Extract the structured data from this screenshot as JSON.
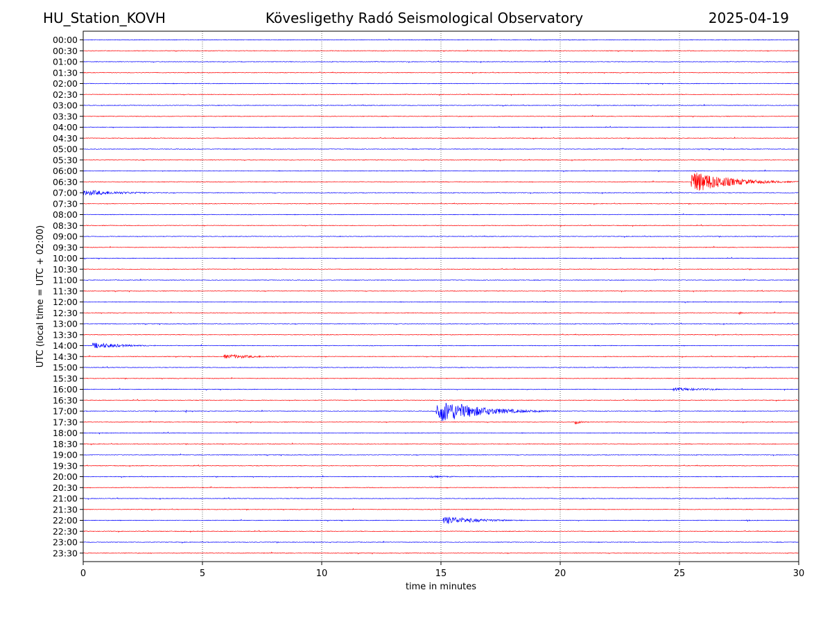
{
  "header": {
    "station": "HU_Station_KOVH",
    "title": "Kövesligethy Radó Seismological Observatory",
    "date": "2025-04-19"
  },
  "chart_data": {
    "type": "line",
    "subtype": "helicorder",
    "xlabel": "time in minutes",
    "ylabel": "UTC (local time = UTC + 02:00)",
    "xlim": [
      0,
      30
    ],
    "xticks": [
      0,
      5,
      10,
      15,
      20,
      25,
      30
    ],
    "vertical_gridlines": [
      5,
      10,
      15,
      20,
      25
    ],
    "grid": "vertical dotted",
    "colors": {
      "even_row": "#0000ff",
      "odd_row": "#ff0000"
    },
    "rows": [
      "00:00",
      "00:30",
      "01:00",
      "01:30",
      "02:00",
      "02:30",
      "03:00",
      "03:30",
      "04:00",
      "04:30",
      "05:00",
      "05:30",
      "06:00",
      "06:30",
      "07:00",
      "07:30",
      "08:00",
      "08:30",
      "09:00",
      "09:30",
      "10:00",
      "10:30",
      "11:00",
      "11:30",
      "12:00",
      "12:30",
      "13:00",
      "13:30",
      "14:00",
      "14:30",
      "15:00",
      "15:30",
      "16:00",
      "16:30",
      "17:00",
      "17:30",
      "18:00",
      "18:30",
      "19:00",
      "19:30",
      "20:00",
      "20:30",
      "21:00",
      "21:30",
      "22:00",
      "22:30",
      "23:00",
      "23:30"
    ],
    "events": [
      {
        "row": "06:30",
        "start_min": 25.5,
        "end_min": 30.0,
        "amplitude": 1.8
      },
      {
        "row": "07:00",
        "start_min": 0.0,
        "end_min": 5.0,
        "amplitude": 0.45
      },
      {
        "row": "12:30",
        "start_min": 27.5,
        "end_min": 27.8,
        "amplitude": 0.3
      },
      {
        "row": "14:00",
        "start_min": 0.4,
        "end_min": 4.0,
        "amplitude": 0.5
      },
      {
        "row": "14:30",
        "start_min": 5.9,
        "end_min": 10.5,
        "amplitude": 0.35
      },
      {
        "row": "16:00",
        "start_min": 24.7,
        "end_min": 30.0,
        "amplitude": 0.25
      },
      {
        "row": "17:00",
        "start_min": 4.3,
        "end_min": 4.4,
        "amplitude": 0.3
      },
      {
        "row": "17:00",
        "start_min": 14.8,
        "end_min": 20.0,
        "amplitude": 1.9
      },
      {
        "row": "17:30",
        "start_min": 20.6,
        "end_min": 21.5,
        "amplitude": 0.35
      },
      {
        "row": "20:00",
        "start_min": 14.5,
        "end_min": 18.0,
        "amplitude": 0.15
      },
      {
        "row": "22:00",
        "start_min": 15.1,
        "end_min": 19.5,
        "amplitude": 0.65
      },
      {
        "row": "22:00",
        "start_min": 27.8,
        "end_min": 28.3,
        "amplitude": 0.2
      }
    ]
  }
}
